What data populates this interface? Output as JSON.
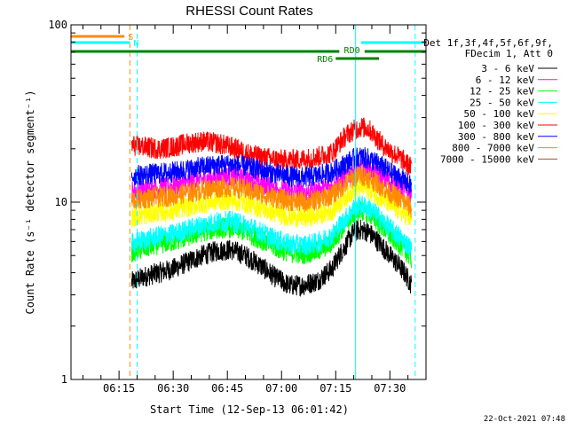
{
  "chart_data": {
    "type": "line",
    "title": "RHESSI Count Rates",
    "xlabel": "Start Time (12-Sep-13 06:01:42)",
    "ylabel": "Count Rate (s⁻¹ detector segment⁻¹)",
    "yscale": "log",
    "ylim": [
      1,
      100
    ],
    "xlim": [
      "06:01:42",
      "07:40:00"
    ],
    "x_ticks": [
      "06:15",
      "06:30",
      "06:45",
      "07:00",
      "07:15",
      "07:30"
    ],
    "y_ticks": [
      "1",
      "10",
      "100"
    ],
    "grid": false,
    "legend_position": "right",
    "legend_header": [
      "Det 1f,3f,4f,5f,6f,9f,",
      "FDecim 1, Att 0"
    ],
    "timestamp": "22-Oct-2021 07:48",
    "data_start": "06:18:30",
    "series": [
      {
        "name": "3 - 6 keV",
        "color": "#000000",
        "x": [
          "06:18",
          "06:22",
          "06:26",
          "06:30",
          "06:34",
          "06:38",
          "06:42",
          "06:46",
          "06:50",
          "06:54",
          "06:58",
          "07:02",
          "07:06",
          "07:10",
          "07:14",
          "07:18",
          "07:20",
          "07:22",
          "07:24",
          "07:26",
          "07:28",
          "07:30",
          "07:34",
          "07:36"
        ],
        "values": [
          3.5,
          3.8,
          4.0,
          4.2,
          4.6,
          5.0,
          5.3,
          5.4,
          5.0,
          4.4,
          3.8,
          3.4,
          3.4,
          3.6,
          4.2,
          5.8,
          6.8,
          7.0,
          6.8,
          6.2,
          5.6,
          5.0,
          4.0,
          3.4
        ]
      },
      {
        "name": "6 - 12 keV",
        "color": "#ff00ff",
        "x": [
          "06:18",
          "06:22",
          "06:26",
          "06:30",
          "06:34",
          "06:38",
          "06:42",
          "06:46",
          "06:50",
          "06:54",
          "06:58",
          "07:02",
          "07:06",
          "07:10",
          "07:14",
          "07:18",
          "07:20",
          "07:22",
          "07:24",
          "07:26",
          "07:28",
          "07:30",
          "07:34",
          "07:36"
        ],
        "values": [
          11.5,
          11.8,
          12.0,
          12.3,
          12.8,
          13.3,
          13.8,
          14.0,
          13.5,
          12.8,
          12.0,
          11.5,
          11.3,
          11.6,
          12.3,
          14.0,
          15.0,
          15.5,
          15.2,
          14.5,
          13.7,
          13.0,
          11.8,
          11.0
        ]
      },
      {
        "name": "12 - 25 keV",
        "color": "#00ff00",
        "x": [
          "06:18",
          "06:22",
          "06:26",
          "06:30",
          "06:34",
          "06:38",
          "06:42",
          "06:46",
          "06:50",
          "06:54",
          "06:58",
          "07:02",
          "07:06",
          "07:10",
          "07:14",
          "07:18",
          "07:20",
          "07:22",
          "07:24",
          "07:26",
          "07:28",
          "07:30",
          "07:34",
          "07:36"
        ],
        "values": [
          5.2,
          5.5,
          5.8,
          6.0,
          6.4,
          6.8,
          7.1,
          7.2,
          6.8,
          6.2,
          5.6,
          5.2,
          5.1,
          5.3,
          5.9,
          7.6,
          8.6,
          9.0,
          8.7,
          8.0,
          7.2,
          6.5,
          5.4,
          4.8
        ]
      },
      {
        "name": "25 - 50 keV",
        "color": "#00ffff",
        "x": [
          "06:18",
          "06:22",
          "06:26",
          "06:30",
          "06:34",
          "06:38",
          "06:42",
          "06:46",
          "06:50",
          "06:54",
          "06:58",
          "07:02",
          "07:06",
          "07:10",
          "07:14",
          "07:18",
          "07:20",
          "07:22",
          "07:24",
          "07:26",
          "07:28",
          "07:30",
          "07:34",
          "07:36"
        ],
        "values": [
          5.8,
          6.1,
          6.4,
          6.6,
          7.0,
          7.4,
          7.7,
          7.8,
          7.4,
          6.8,
          6.2,
          5.8,
          5.7,
          5.9,
          6.5,
          8.2,
          9.2,
          9.6,
          9.3,
          8.6,
          7.8,
          7.1,
          6.0,
          5.4
        ]
      },
      {
        "name": "50 - 100 keV",
        "color": "#ffff00",
        "x": [
          "06:18",
          "06:22",
          "06:26",
          "06:30",
          "06:34",
          "06:38",
          "06:42",
          "06:46",
          "06:50",
          "06:54",
          "06:58",
          "07:02",
          "07:06",
          "07:10",
          "07:14",
          "07:18",
          "07:20",
          "07:22",
          "07:24",
          "07:26",
          "07:28",
          "07:30",
          "07:34",
          "07:36"
        ],
        "values": [
          8.2,
          8.5,
          8.8,
          9.0,
          9.4,
          9.8,
          10.2,
          10.3,
          9.9,
          9.3,
          8.7,
          8.3,
          8.2,
          8.4,
          9.0,
          10.8,
          11.8,
          12.2,
          11.9,
          11.2,
          10.4,
          9.7,
          8.6,
          8.0
        ]
      },
      {
        "name": "100 - 300 keV",
        "color": "#ff0000",
        "x": [
          "06:18",
          "06:22",
          "06:26",
          "06:30",
          "06:34",
          "06:38",
          "06:42",
          "06:46",
          "06:50",
          "06:54",
          "06:58",
          "07:02",
          "07:06",
          "07:10",
          "07:14",
          "07:16",
          "07:18",
          "07:20",
          "07:22",
          "07:24",
          "07:26",
          "07:28",
          "07:30",
          "07:34",
          "07:36"
        ],
        "values": [
          21,
          20.5,
          20,
          20.5,
          21.5,
          22,
          21.5,
          20.5,
          19,
          18,
          17.5,
          17.2,
          17.5,
          18,
          19,
          21.5,
          24,
          25.5,
          26.5,
          26,
          23.5,
          21,
          19.5,
          17,
          15.5
        ]
      },
      {
        "name": "300 - 800 keV",
        "color": "#0000ff",
        "x": [
          "06:18",
          "06:22",
          "06:26",
          "06:30",
          "06:34",
          "06:38",
          "06:42",
          "06:46",
          "06:50",
          "06:54",
          "06:58",
          "07:02",
          "07:06",
          "07:10",
          "07:14",
          "07:18",
          "07:20",
          "07:22",
          "07:24",
          "07:26",
          "07:28",
          "07:30",
          "07:34",
          "07:36"
        ],
        "values": [
          14.0,
          14.3,
          14.5,
          14.8,
          15.3,
          15.8,
          16.2,
          16.3,
          15.9,
          15.2,
          14.5,
          14.0,
          13.8,
          14.1,
          14.8,
          16.6,
          17.6,
          18.0,
          17.6,
          16.8,
          15.8,
          14.8,
          13.2,
          12.2
        ]
      },
      {
        "name": "800 - 7000 keV",
        "color": "#ff8c00",
        "x": [
          "06:18",
          "06:22",
          "06:26",
          "06:30",
          "06:34",
          "06:38",
          "06:42",
          "06:46",
          "06:50",
          "06:54",
          "06:58",
          "07:02",
          "07:06",
          "07:10",
          "07:14",
          "07:18",
          "07:20",
          "07:22",
          "07:24",
          "07:26",
          "07:28",
          "07:30",
          "07:34",
          "07:36"
        ],
        "values": [
          10.2,
          10.5,
          10.7,
          10.9,
          11.3,
          11.7,
          12.1,
          12.2,
          11.8,
          11.2,
          10.6,
          10.2,
          10.0,
          10.3,
          11.0,
          12.8,
          13.8,
          14.2,
          13.8,
          13.0,
          12.1,
          11.3,
          10.0,
          9.2
        ]
      },
      {
        "name": "7000 - 15000 keV",
        "color": "#a0522d",
        "x": [],
        "values": []
      }
    ],
    "vlines": [
      {
        "x": "06:01:42",
        "color": "#00ffff",
        "style": "solid"
      },
      {
        "x": "06:18:00",
        "color": "#ff8c00",
        "style": "dashed"
      },
      {
        "x": "06:20:00",
        "color": "#00ffff",
        "style": "dashed"
      },
      {
        "x": "07:20:30",
        "color": "#00ffff",
        "style": "solid"
      },
      {
        "x": "07:37:00",
        "color": "#00ffff",
        "style": "dashed"
      }
    ],
    "annotations": [
      {
        "label": "S",
        "color": "#ff8c00",
        "x_start": "06:01:42",
        "x_end": "06:16:30",
        "level": 1
      },
      {
        "label": "N",
        "color": "#00ffff",
        "x_start": "06:01:42",
        "x_end": "06:18:00",
        "level": 2
      },
      {
        "label": "RD0",
        "color": "#008000",
        "x_start": "06:01:42",
        "x_end": "07:40:00",
        "level": 3,
        "gap": [
          "07:16:00",
          "07:23:00"
        ]
      },
      {
        "label": "RD6",
        "color": "#008000",
        "x_start": "07:15:00",
        "x_end": "07:27:00",
        "level": 4
      },
      {
        "label": "",
        "color": "#00ffff",
        "x_start": "07:22:00",
        "x_end": "07:40:00",
        "level": 2
      }
    ]
  }
}
